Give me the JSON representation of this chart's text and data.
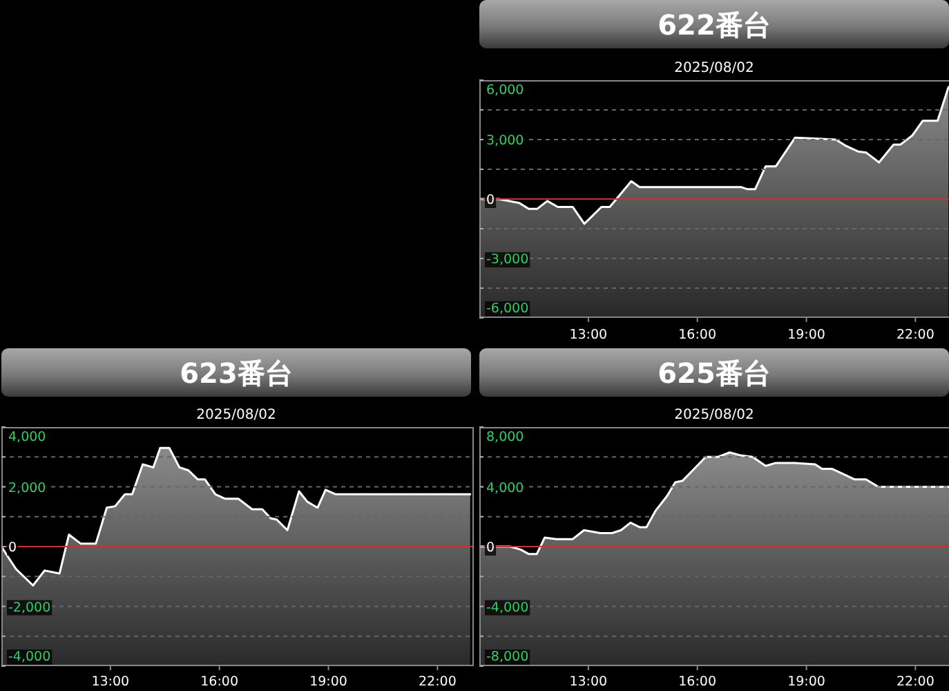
{
  "chart_data": [
    {
      "type": "area",
      "title": "622番台",
      "subtitle": "2025/08/02",
      "xlim": [
        10,
        23
      ],
      "xticks": [
        {
          "value": 13,
          "label": "13:00"
        },
        {
          "value": 16,
          "label": "16:00"
        },
        {
          "value": 19,
          "label": "19:00"
        },
        {
          "value": 22,
          "label": "22:00"
        }
      ],
      "ylim": [
        -6000,
        6000
      ],
      "yticks": [
        {
          "value": -6000,
          "label": "-6,000"
        },
        {
          "value": -4500,
          "label": null
        },
        {
          "value": -3000,
          "label": "-3,000"
        },
        {
          "value": -1500,
          "label": null
        },
        {
          "value": 0,
          "label": "0"
        },
        {
          "value": 1500,
          "label": null
        },
        {
          "value": 3000,
          "label": "3,000"
        },
        {
          "value": 4500,
          "label": null
        },
        {
          "value": 6000,
          "label": "6,000"
        }
      ],
      "grid": "y",
      "ref_lines": [
        {
          "axis": "y",
          "value": 0,
          "color": "#c83232"
        }
      ],
      "x": [
        10.0,
        10.53,
        11.1,
        11.36,
        11.59,
        11.87,
        12.16,
        12.57,
        12.89,
        13.36,
        13.59,
        14.18,
        14.41,
        17.21,
        17.37,
        17.59,
        17.88,
        18.16,
        18.69,
        19.24,
        19.81,
        20.07,
        20.42,
        20.64,
        21.0,
        21.4,
        21.59,
        21.91,
        22.2,
        22.61,
        22.91
      ],
      "series": [
        {
          "color": "#ffffff",
          "values": [
            0,
            0,
            -200,
            -500,
            -500,
            -100,
            -400,
            -400,
            -1250,
            -400,
            -400,
            900,
            600,
            600,
            500,
            500,
            1650,
            1650,
            3100,
            3050,
            3000,
            2700,
            2400,
            2350,
            1850,
            2750,
            2750,
            3200,
            3950,
            3950,
            5650
          ]
        }
      ]
    },
    {
      "type": "area",
      "title": "623番台",
      "subtitle": "2025/08/02",
      "xlim": [
        10,
        23
      ],
      "xticks": [
        {
          "value": 13,
          "label": "13:00"
        },
        {
          "value": 16,
          "label": "16:00"
        },
        {
          "value": 19,
          "label": "19:00"
        },
        {
          "value": 22,
          "label": "22:00"
        }
      ],
      "ylim": [
        -4000,
        4000
      ],
      "yticks": [
        {
          "value": -4000,
          "label": "-4,000"
        },
        {
          "value": -3000,
          "label": null
        },
        {
          "value": -2000,
          "label": "-2,000"
        },
        {
          "value": -1000,
          "label": null
        },
        {
          "value": 0,
          "label": "0"
        },
        {
          "value": 1000,
          "label": null
        },
        {
          "value": 2000,
          "label": "2,000"
        },
        {
          "value": 3000,
          "label": null
        },
        {
          "value": 4000,
          "label": "4,000"
        }
      ],
      "grid": "y",
      "ref_lines": [
        {
          "axis": "y",
          "value": 0,
          "color": "#c83232"
        }
      ],
      "x": [
        10.0,
        10.4,
        10.87,
        11.19,
        11.6,
        11.86,
        12.18,
        12.6,
        12.9,
        13.13,
        13.4,
        13.6,
        13.89,
        14.18,
        14.37,
        14.62,
        14.9,
        15.15,
        15.4,
        15.6,
        15.89,
        16.16,
        16.52,
        16.9,
        17.18,
        17.41,
        17.58,
        17.87,
        18.19,
        18.42,
        18.7,
        18.92,
        19.2,
        22.9
      ],
      "series": [
        {
          "color": "#ffffff",
          "values": [
            0,
            -750,
            -1300,
            -800,
            -900,
            400,
            100,
            100,
            1300,
            1350,
            1750,
            1750,
            2750,
            2650,
            3300,
            3300,
            2650,
            2550,
            2250,
            2250,
            1750,
            1600,
            1600,
            1250,
            1250,
            950,
            900,
            550,
            1850,
            1500,
            1300,
            1900,
            1750,
            1750
          ]
        }
      ]
    },
    {
      "type": "area",
      "title": "625番台",
      "subtitle": "2025/08/02",
      "xlim": [
        10,
        23
      ],
      "xticks": [
        {
          "value": 13,
          "label": "13:00"
        },
        {
          "value": 16,
          "label": "16:00"
        },
        {
          "value": 19,
          "label": "19:00"
        },
        {
          "value": 22,
          "label": "22:00"
        }
      ],
      "ylim": [
        -8000,
        8000
      ],
      "yticks": [
        {
          "value": -8000,
          "label": "-8,000"
        },
        {
          "value": -6000,
          "label": null
        },
        {
          "value": -4000,
          "label": "-4,000"
        },
        {
          "value": -2000,
          "label": null
        },
        {
          "value": 0,
          "label": "0"
        },
        {
          "value": 2000,
          "label": null
        },
        {
          "value": 4000,
          "label": "4,000"
        },
        {
          "value": 6000,
          "label": null
        },
        {
          "value": 8000,
          "label": "8,000"
        }
      ],
      "grid": "y",
      "ref_lines": [
        {
          "axis": "y",
          "value": 0,
          "color": "#c83232"
        }
      ],
      "x": [
        10.0,
        10.85,
        11.14,
        11.36,
        11.58,
        11.8,
        12.12,
        12.57,
        12.88,
        13.33,
        13.65,
        13.9,
        14.16,
        14.41,
        14.6,
        14.85,
        15.17,
        15.39,
        15.59,
        15.87,
        16.23,
        16.57,
        16.89,
        17.2,
        17.52,
        17.88,
        18.16,
        18.67,
        19.24,
        19.43,
        19.71,
        20.06,
        20.32,
        20.64,
        20.98,
        22.94
      ],
      "series": [
        {
          "color": "#ffffff",
          "values": [
            0,
            0,
            -200,
            -500,
            -500,
            600,
            500,
            500,
            1100,
            900,
            900,
            1100,
            1600,
            1300,
            1300,
            2400,
            3400,
            4300,
            4400,
            5100,
            6000,
            6000,
            6300,
            6100,
            6000,
            5400,
            5600,
            5600,
            5500,
            5200,
            5200,
            4800,
            4500,
            4500,
            4000,
            4000
          ]
        }
      ]
    }
  ]
}
